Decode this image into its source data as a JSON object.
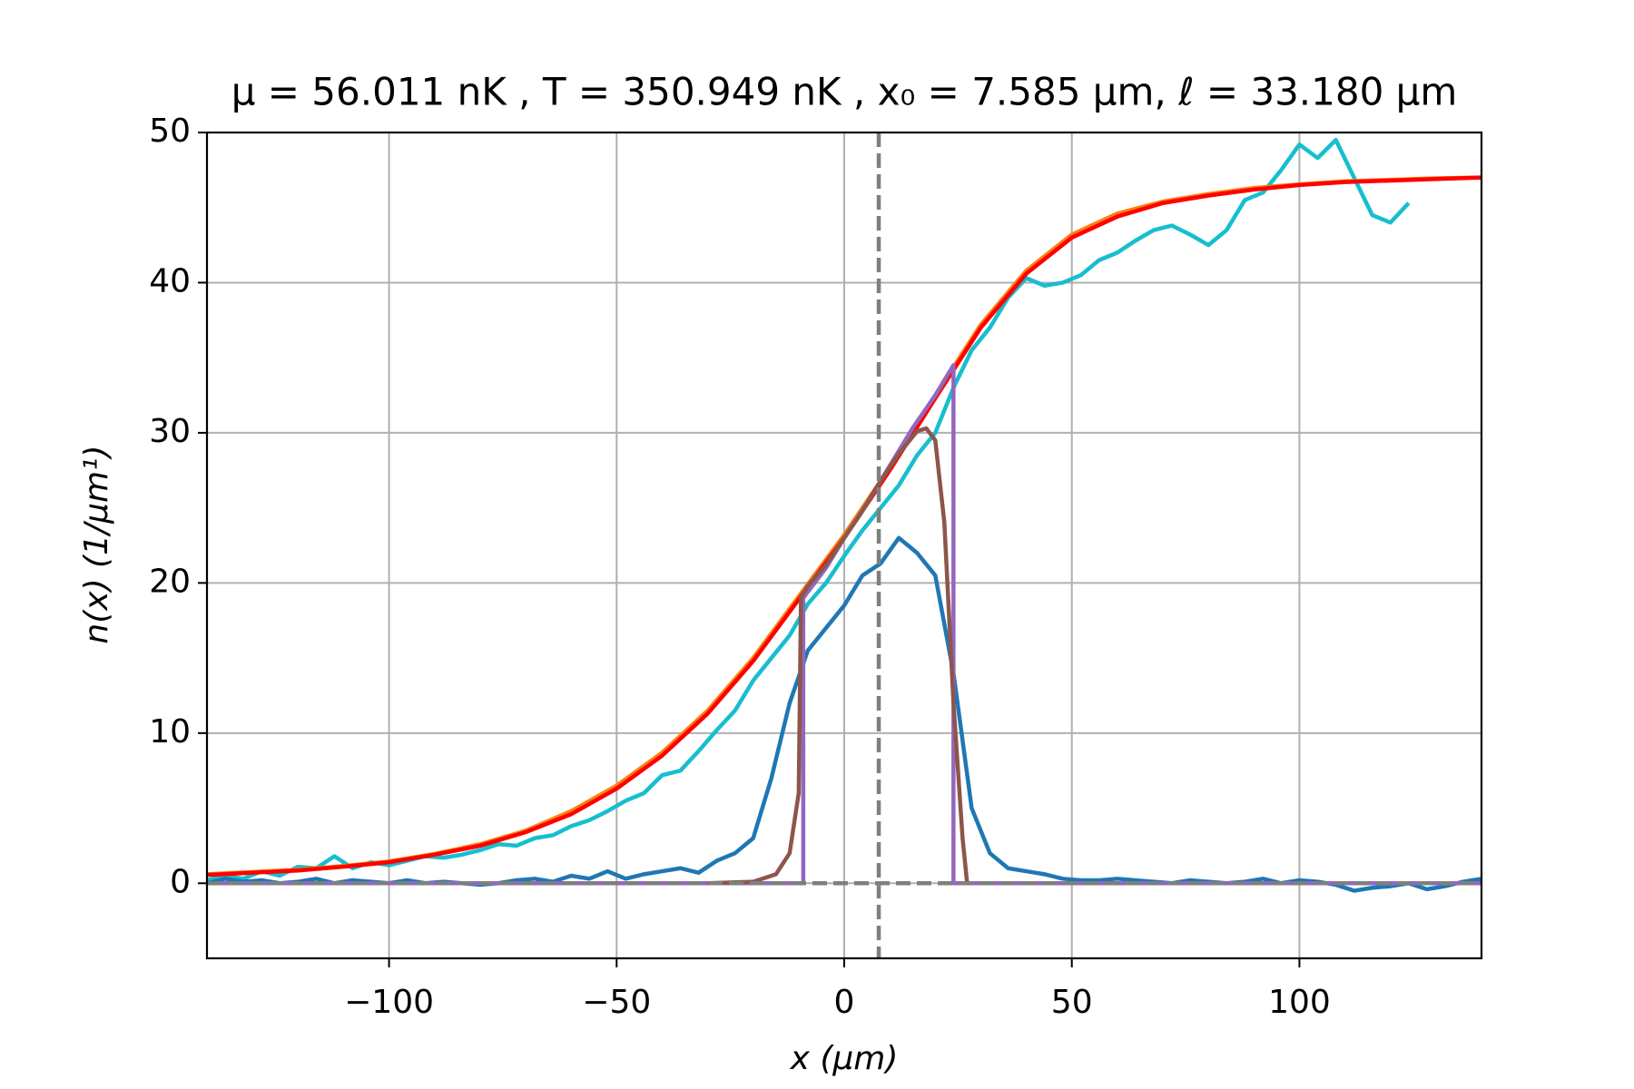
{
  "chart_data": {
    "type": "line",
    "title": "μ =  56.011 nK , T =  350.949 nK , x₀ =  7.585 μm,  ℓ =  33.180 μm",
    "x_label": "x   (μm)",
    "y_label": "n(x)   (1/μm¹)",
    "xlim": [
      -140,
      140
    ],
    "ylim": [
      -5,
      50
    ],
    "xticks": [
      {
        "value": -100,
        "label": "−100"
      },
      {
        "value": -50,
        "label": "−50"
      },
      0,
      50,
      100
    ],
    "yticks": [
      0,
      10,
      20,
      30,
      40,
      50
    ],
    "grid": true,
    "reference_lines": {
      "x": 7.585,
      "y": 0,
      "color": "#7f7f7f"
    },
    "series": [
      {
        "color": "#17becf",
        "x": [
          -140,
          -136,
          -132,
          -128,
          -124,
          -120,
          -116,
          -112,
          -108,
          -104,
          -100,
          -96,
          -92,
          -88,
          -84,
          -80,
          -76,
          -72,
          -68,
          -64,
          -60,
          -56,
          -52,
          -48,
          -44,
          -40,
          -36,
          -32,
          -28,
          -24,
          -20,
          -16,
          -12,
          -8,
          -4,
          0,
          4,
          8,
          12,
          16,
          20,
          24,
          28,
          32,
          36,
          40,
          44,
          48,
          52,
          56,
          60,
          64,
          68,
          72,
          76,
          80,
          84,
          88,
          92,
          96,
          100,
          104,
          108,
          112,
          116,
          120,
          124
        ],
        "values": [
          0.2,
          0.5,
          0.3,
          0.8,
          0.5,
          1.1,
          1.0,
          1.8,
          1.0,
          1.4,
          1.2,
          1.5,
          1.8,
          1.7,
          1.9,
          2.2,
          2.6,
          2.5,
          3.0,
          3.2,
          3.8,
          4.2,
          4.8,
          5.5,
          6.0,
          7.2,
          7.5,
          8.8,
          10.2,
          11.5,
          13.5,
          15.0,
          16.5,
          18.6,
          20.0,
          21.8,
          23.5,
          25.0,
          26.5,
          28.5,
          30.0,
          33.0,
          35.5,
          37.0,
          39.0,
          40.3,
          39.8,
          40.0,
          40.5,
          41.5,
          42.0,
          42.8,
          43.5,
          43.8,
          43.2,
          42.5,
          43.5,
          45.5,
          46.0,
          47.5,
          49.2,
          48.3,
          49.5,
          47.0,
          44.5,
          44.0,
          45.3
        ]
      },
      {
        "color": "#1f77b4",
        "x": [
          -140,
          -136,
          -132,
          -128,
          -124,
          -120,
          -116,
          -112,
          -108,
          -104,
          -100,
          -96,
          -92,
          -88,
          -84,
          -80,
          -76,
          -72,
          -68,
          -64,
          -60,
          -56,
          -52,
          -48,
          -44,
          -40,
          -36,
          -32,
          -28,
          -24,
          -20,
          -16,
          -12,
          -8,
          -4,
          0,
          4,
          8,
          12,
          16,
          20,
          24,
          28,
          32,
          36,
          40,
          44,
          48,
          52,
          56,
          60,
          64,
          68,
          72,
          76,
          80,
          84,
          88,
          92,
          96,
          100,
          104,
          108,
          112,
          116,
          120,
          124,
          128,
          132,
          136,
          140
        ],
        "values": [
          0,
          0.3,
          0.1,
          0.2,
          0,
          0.1,
          0.3,
          0,
          0.2,
          0.1,
          0,
          0.2,
          0,
          0.1,
          0,
          -0.1,
          0,
          0.2,
          0.3,
          0.1,
          0.5,
          0.3,
          0.8,
          0.3,
          0.6,
          0.8,
          1.0,
          0.7,
          1.5,
          2.0,
          3.0,
          7.0,
          12.0,
          15.5,
          17.0,
          18.5,
          20.5,
          21.3,
          23.0,
          22.0,
          20.5,
          14.0,
          5.0,
          2.0,
          1.0,
          0.8,
          0.6,
          0.3,
          0.2,
          0.2,
          0.3,
          0.2,
          0.1,
          0,
          0.2,
          0.1,
          0,
          0.1,
          0.3,
          0,
          0.2,
          0.1,
          -0.1,
          -0.5,
          -0.3,
          -0.2,
          0,
          -0.4,
          -0.2,
          0.1,
          0.3
        ]
      },
      {
        "color": "#ff7f0e",
        "x": [
          -140,
          -130,
          -120,
          -110,
          -100,
          -90,
          -80,
          -70,
          -60,
          -50,
          -40,
          -30,
          -20,
          -10,
          0,
          10,
          20,
          30,
          40,
          50,
          60,
          70,
          80,
          90,
          100,
          110,
          120,
          130,
          140
        ],
        "values": [
          0.6,
          0.75,
          0.9,
          1.15,
          1.45,
          1.95,
          2.6,
          3.5,
          4.8,
          6.5,
          8.7,
          11.5,
          15.0,
          19.1,
          23.2,
          27.7,
          32.5,
          37.2,
          40.8,
          43.2,
          44.6,
          45.4,
          45.9,
          46.3,
          46.55,
          46.75,
          46.85,
          46.95,
          47.0
        ]
      },
      {
        "color": "#ff0000",
        "x": [
          -140,
          -130,
          -120,
          -110,
          -100,
          -90,
          -80,
          -70,
          -60,
          -50,
          -40,
          -30,
          -20,
          -10,
          0,
          10,
          20,
          30,
          40,
          50,
          60,
          70,
          80,
          90,
          100,
          110,
          120,
          130,
          140
        ],
        "values": [
          0.55,
          0.7,
          0.85,
          1.1,
          1.4,
          1.9,
          2.5,
          3.4,
          4.6,
          6.3,
          8.5,
          11.3,
          14.8,
          18.9,
          23.0,
          27.5,
          32.3,
          37.0,
          40.6,
          43.0,
          44.4,
          45.3,
          45.8,
          46.2,
          46.5,
          46.7,
          46.8,
          46.9,
          47.0
        ]
      },
      {
        "color": "#9467bd",
        "x": [
          -140,
          -9,
          -9,
          -4,
          0,
          5,
          10,
          15,
          20,
          24,
          24,
          140
        ],
        "values": [
          0,
          0,
          19,
          21,
          23,
          25.3,
          27.8,
          30.3,
          32.5,
          34.5,
          0,
          0
        ]
      },
      {
        "color": "#8c564b",
        "x": [
          -30,
          -20,
          -15,
          -12,
          -10,
          -9.5,
          -8,
          -4,
          0,
          4,
          8,
          12,
          16,
          18,
          20,
          22,
          24,
          26,
          27
        ],
        "values": [
          0,
          0.1,
          0.6,
          2,
          6,
          19,
          19.8,
          21.2,
          23,
          24.8,
          26.8,
          28.6,
          30.1,
          30.3,
          29.5,
          24,
          12,
          3,
          0
        ]
      }
    ]
  }
}
